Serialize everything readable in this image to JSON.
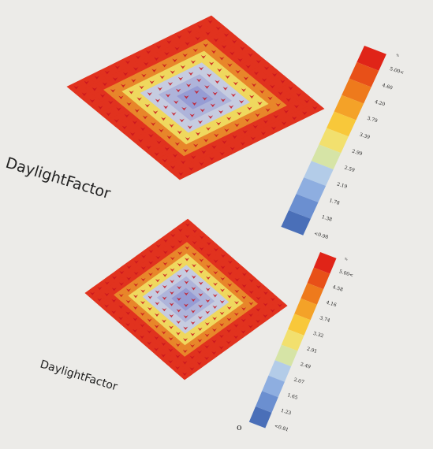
{
  "colors": {
    "background": "#ecebe8",
    "grid_red": "#e1321e",
    "marker_red": "#c8141e",
    "legend_ramp": [
      "#4a6fb8",
      "#6b8fd0",
      "#8eaee0",
      "#b3cce8",
      "#d6e4a6",
      "#f2e06e",
      "#f8c83a",
      "#f4a228",
      "#ee7a1c",
      "#e85018",
      "#e02418"
    ]
  },
  "diagrams": [
    {
      "name": "top",
      "title": "DaylightFactor",
      "legend": {
        "unit": "%",
        "labels": [
          "5.00<",
          "4.60",
          "4.20",
          "3.79",
          "3.39",
          "2.99",
          "2.59",
          "2.19",
          "1.78",
          "1.38",
          "<0.98"
        ]
      }
    },
    {
      "name": "bottom",
      "title": "DaylightFactor",
      "legend": {
        "unit": "%",
        "labels": [
          "5.00<",
          "4.58",
          "4.16",
          "3.74",
          "3.32",
          "2.91",
          "2.49",
          "2.07",
          "1.65",
          "1.23",
          "<0.81"
        ]
      },
      "origin_marker": "o"
    }
  ]
}
